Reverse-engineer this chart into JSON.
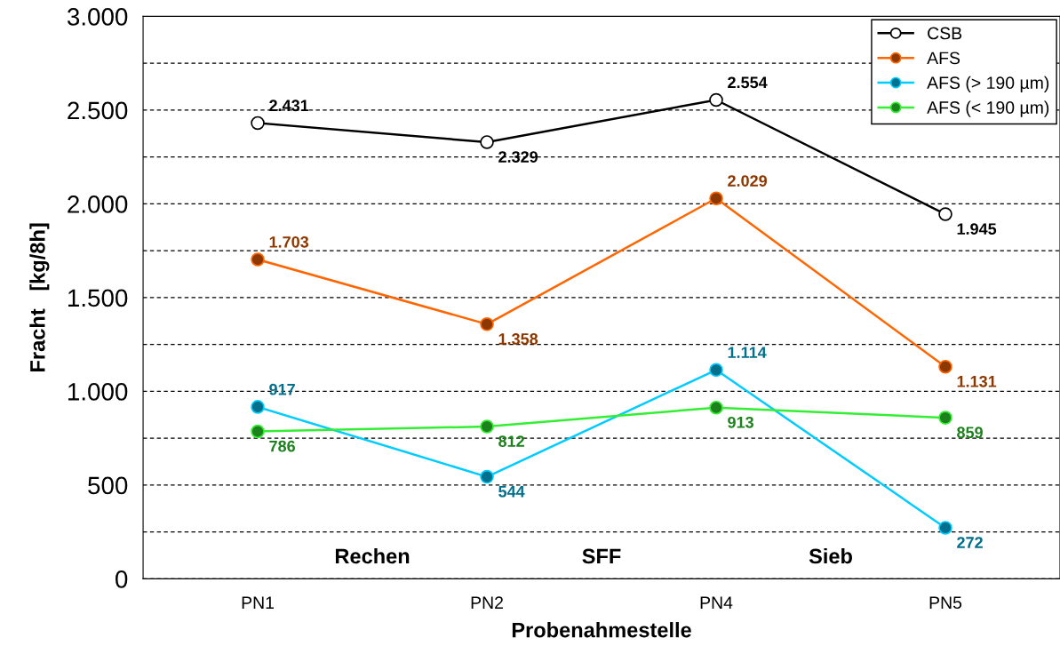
{
  "chart_data": {
    "type": "line",
    "xlabel": "Probenahmestelle",
    "ylabel": "Fracht   [kg/8h]",
    "categories": [
      "PN1",
      "PN2",
      "PN4",
      "PN5"
    ],
    "series": [
      {
        "name": "CSB",
        "color": "#000000",
        "values": [
          2431,
          2329,
          2554,
          1945
        ],
        "value_labels": [
          "2.431",
          "2.329",
          "2.554",
          "1.945"
        ]
      },
      {
        "name": "AFS",
        "color": "#ff6600",
        "values": [
          1703,
          1358,
          2029,
          1131
        ],
        "value_labels": [
          "1.703",
          "1.358",
          "2.029",
          "1.131"
        ]
      },
      {
        "name": "AFS (> 190 µm)",
        "color": "#00ccff",
        "values": [
          917,
          544,
          1114,
          272
        ],
        "value_labels": [
          "917",
          "544",
          "1.114",
          "272"
        ]
      },
      {
        "name": "AFS (< 190 µm)",
        "color": "#33ee33",
        "values": [
          786,
          812,
          913,
          859
        ],
        "value_labels": [
          "786",
          "812",
          "913",
          "859"
        ]
      }
    ],
    "ylim": [
      0,
      3000
    ],
    "yticks": [
      0,
      {
        "value": 250,
        "label": null
      },
      500,
      {
        "value": 750,
        "label": null
      },
      {
        "value": 1000,
        "label": "1.000"
      },
      {
        "value": 1250,
        "label": null
      },
      {
        "value": 1500,
        "label": "1.500"
      },
      {
        "value": 1750,
        "label": null
      },
      {
        "value": 2000,
        "label": "2.000"
      },
      {
        "value": 2250,
        "label": null
      },
      {
        "value": 2500,
        "label": "2.500"
      },
      {
        "value": 2750,
        "label": null
      },
      {
        "value": 3000,
        "label": "3.000"
      }
    ],
    "annotations": [
      "Rechen",
      "SFF",
      "Sieb"
    ],
    "grid": "y",
    "legend": "top right",
    "marker": "circle",
    "line_style": "solid"
  }
}
